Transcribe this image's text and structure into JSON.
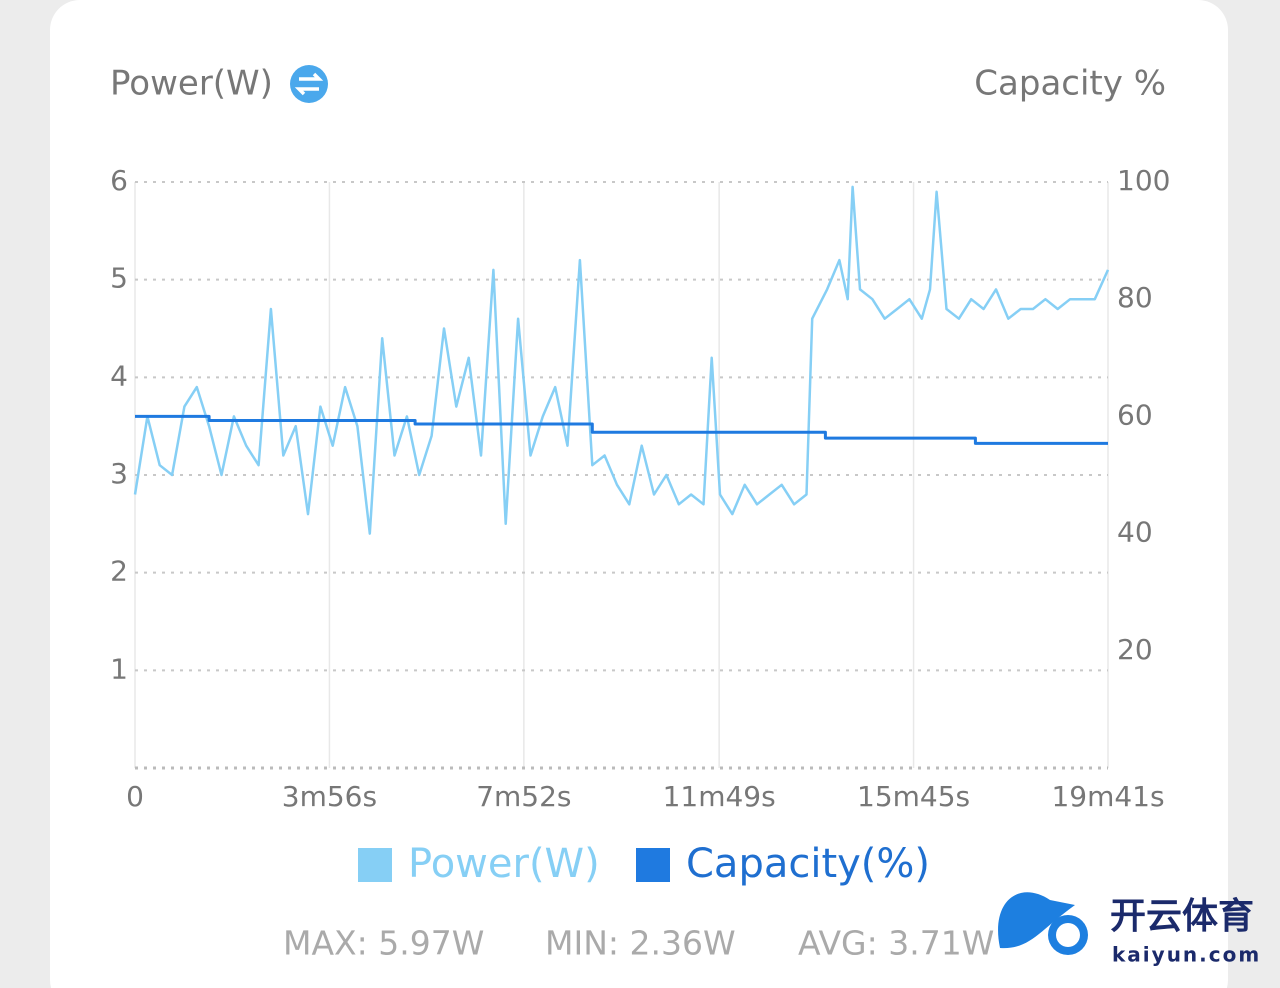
{
  "chart_data": {
    "type": "line",
    "left_axis_title": "Power(W)",
    "right_axis_title": "Capacity %",
    "xlim": [
      0,
      1181
    ],
    "xticks": [
      0,
      {
        "value": 236,
        "label": "3m56s"
      },
      {
        "value": 472,
        "label": "7m52s"
      },
      {
        "value": 709,
        "label": "11m49s"
      },
      {
        "value": 945,
        "label": "15m45s"
      },
      {
        "value": 1181,
        "label": "19m41s"
      }
    ],
    "ylim": [
      0,
      6
    ],
    "yticks": [
      1,
      2,
      3,
      4,
      5,
      6
    ],
    "y2lim": [
      0,
      100
    ],
    "y2ticks": [
      20,
      40,
      60,
      80,
      100
    ],
    "grid": true,
    "series": [
      {
        "name": "Power(W)",
        "color": "#86cff5",
        "x": [
          0,
          15,
          30,
          45,
          60,
          75,
          90,
          105,
          120,
          135,
          150,
          165,
          180,
          195,
          210,
          225,
          240,
          255,
          270,
          285,
          300,
          315,
          330,
          345,
          360,
          375,
          390,
          405,
          420,
          435,
          450,
          465,
          480,
          495,
          510,
          525,
          540,
          555,
          570,
          585,
          600,
          615,
          630,
          645,
          660,
          675,
          690,
          700,
          710,
          725,
          740,
          755,
          770,
          785,
          800,
          815,
          822,
          840,
          855,
          865,
          871,
          880,
          895,
          910,
          925,
          940,
          955,
          965,
          973,
          985,
          1000,
          1015,
          1030,
          1045,
          1060,
          1075,
          1090,
          1105,
          1120,
          1135,
          1150,
          1165,
          1181
        ],
        "values": [
          2.8,
          3.6,
          3.1,
          3.0,
          3.7,
          3.9,
          3.5,
          3.0,
          3.6,
          3.3,
          3.1,
          4.7,
          3.2,
          3.5,
          2.6,
          3.7,
          3.3,
          3.9,
          3.5,
          2.4,
          4.4,
          3.2,
          3.6,
          3.0,
          3.4,
          4.5,
          3.7,
          4.2,
          3.2,
          5.1,
          2.5,
          4.6,
          3.2,
          3.6,
          3.9,
          3.3,
          5.2,
          3.1,
          3.2,
          2.9,
          2.7,
          3.3,
          2.8,
          3.0,
          2.7,
          2.8,
          2.7,
          4.2,
          2.8,
          2.6,
          2.9,
          2.7,
          2.8,
          2.9,
          2.7,
          2.8,
          4.6,
          4.9,
          5.2,
          4.8,
          5.95,
          4.9,
          4.8,
          4.6,
          4.7,
          4.8,
          4.6,
          4.9,
          5.9,
          4.7,
          4.6,
          4.8,
          4.7,
          4.9,
          4.6,
          4.7,
          4.7,
          4.8,
          4.7,
          4.8,
          4.8,
          4.8,
          5.1
        ]
      },
      {
        "name": "Capacity(%)",
        "color": "#1f7ae0",
        "axis": "y2",
        "x": [
          0,
          90,
          90,
          340,
          340,
          555,
          555,
          838,
          838,
          1020,
          1020,
          1181
        ],
        "values": [
          60,
          60,
          59.3,
          59.3,
          58.7,
          58.7,
          57.3,
          57.3,
          56.3,
          56.3,
          55.4,
          55.4
        ]
      }
    ],
    "stats": [
      "MAX: 5.97W",
      "MIN: 2.36W",
      "AVG: 3.71W"
    ],
    "watermark": {
      "name": "开云体育",
      "site": "kaiyun.com"
    }
  }
}
